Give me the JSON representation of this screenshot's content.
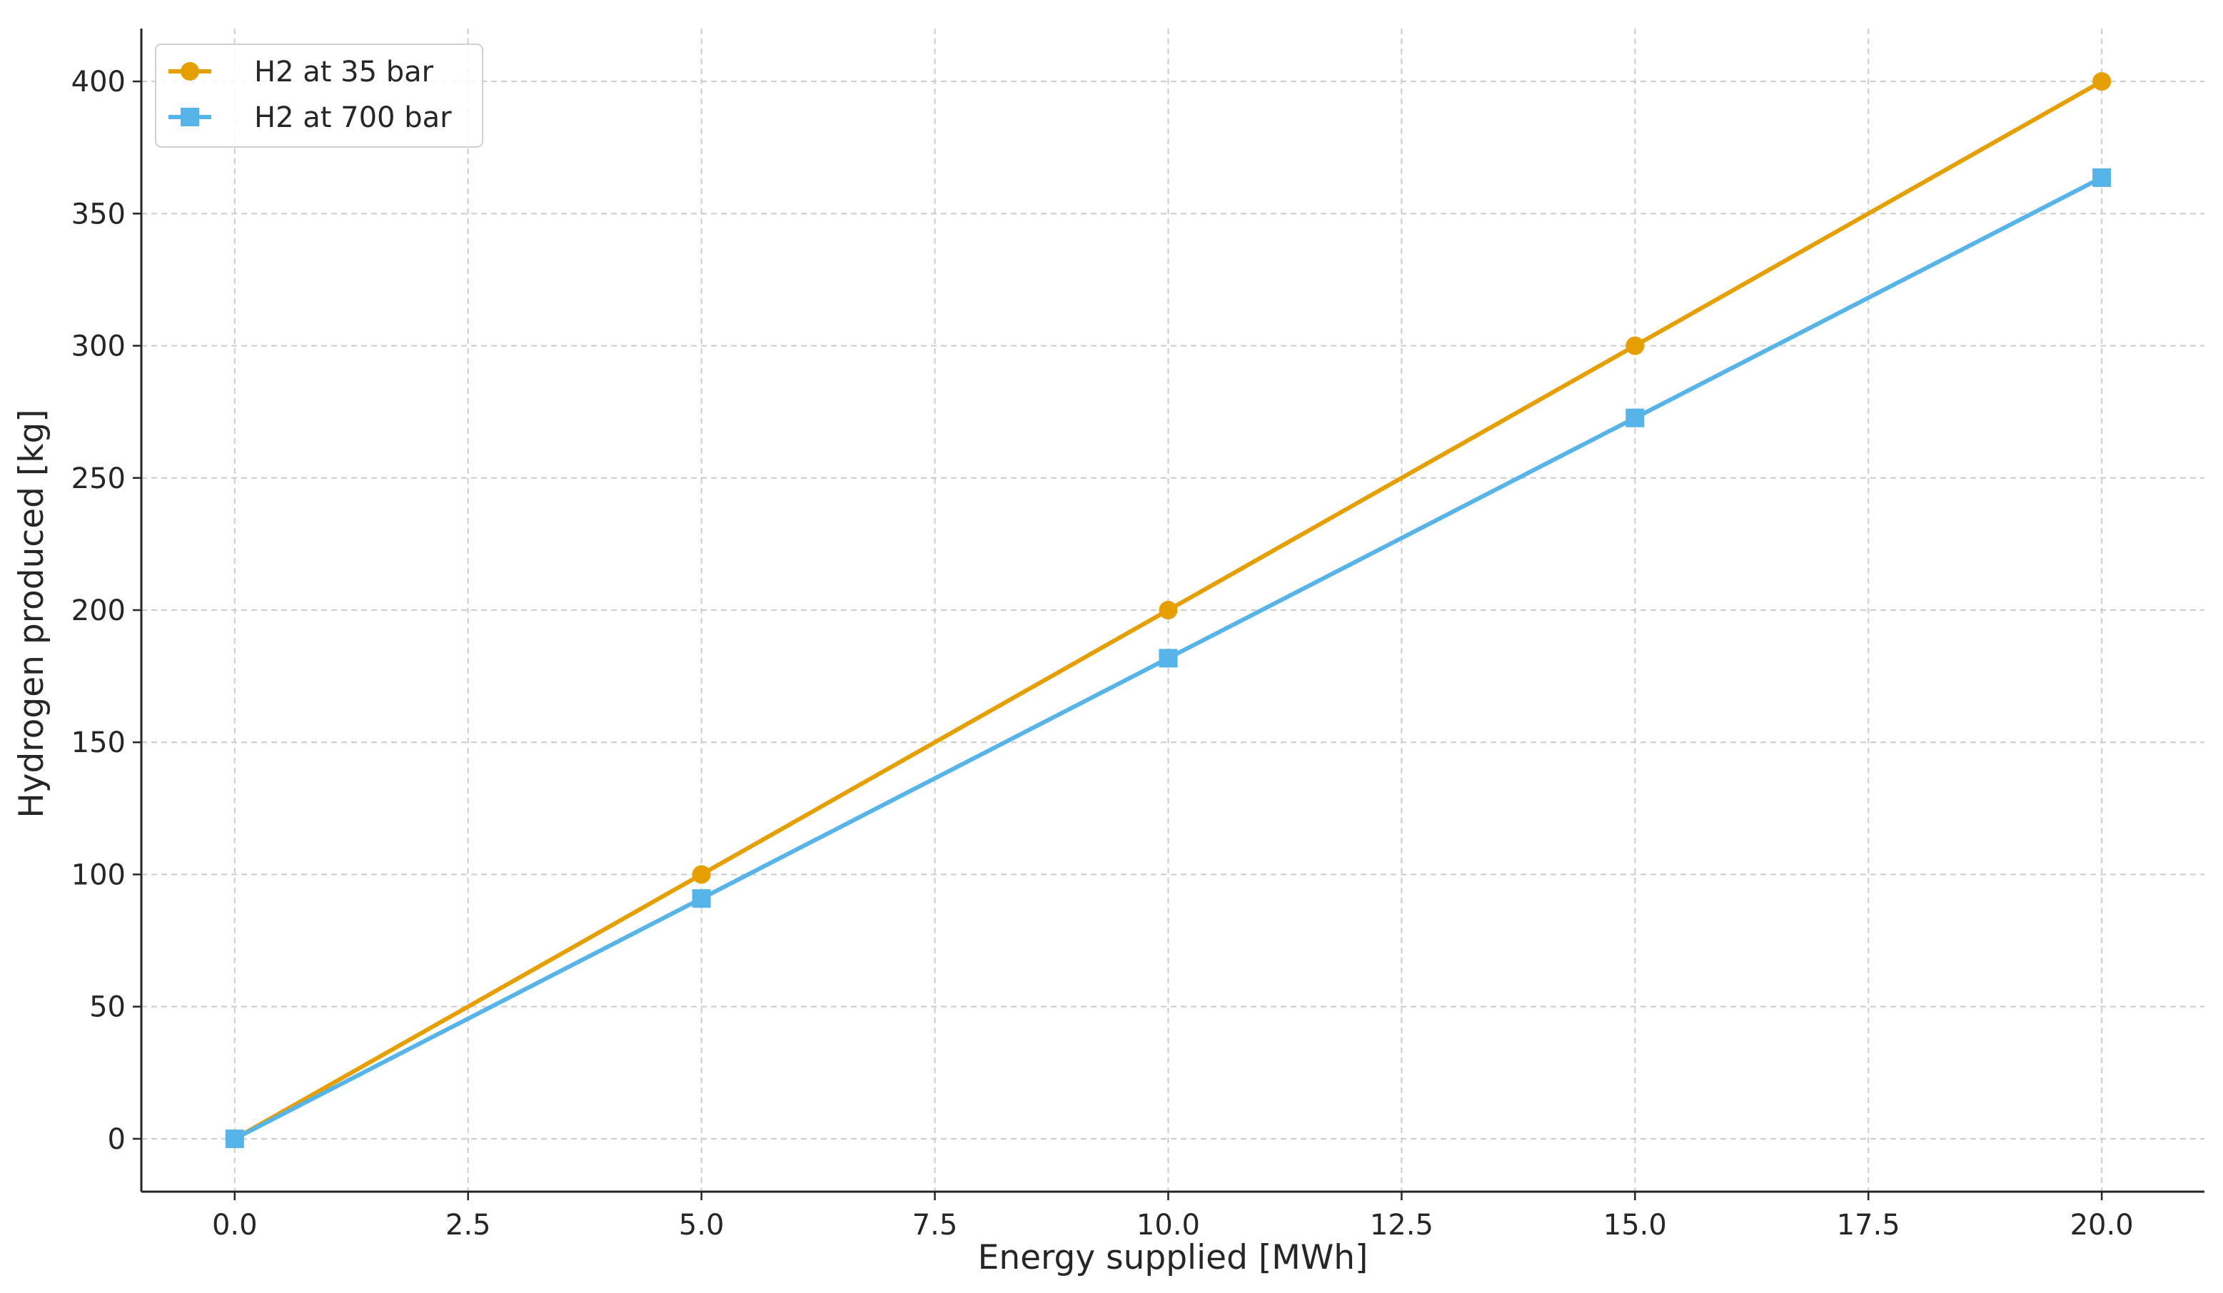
{
  "chart_data": {
    "type": "line",
    "title": "",
    "xlabel": "Energy supplied [MWh]",
    "ylabel": "Hydrogen produced [kg]",
    "x": [
      0,
      5,
      10,
      15,
      20
    ],
    "series": [
      {
        "name": "H2 at 35 bar",
        "values": [
          0,
          100,
          200,
          300,
          400
        ],
        "color": "#E69F00",
        "marker": "circle"
      },
      {
        "name": "H2 at 700 bar",
        "values": [
          0,
          90.9,
          181.8,
          272.7,
          363.6
        ],
        "color": "#56B4E9",
        "marker": "square"
      }
    ],
    "xlim": [
      -1,
      21.1
    ],
    "ylim": [
      -20,
      420
    ],
    "xticks": [
      0,
      2.5,
      5,
      7.5,
      10,
      12.5,
      15,
      17.5,
      20
    ],
    "xtick_labels": [
      "0.0",
      "2.5",
      "5.0",
      "7.5",
      "10.0",
      "12.5",
      "15.0",
      "17.5",
      "20.0"
    ],
    "yticks": [
      0,
      50,
      100,
      150,
      200,
      250,
      300,
      350,
      400
    ],
    "ytick_labels": [
      "0",
      "50",
      "100",
      "150",
      "200",
      "250",
      "300",
      "350",
      "400"
    ],
    "grid": true,
    "legend": "top-left"
  }
}
